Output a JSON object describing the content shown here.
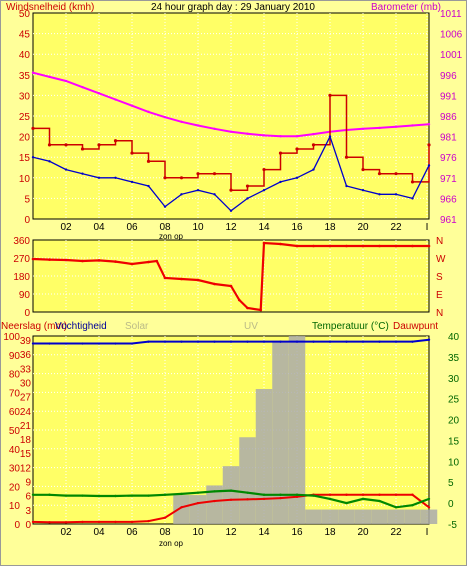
{
  "header": {
    "left_title": "Windsnelheid (kmh)",
    "center_title": "24 hour graph day : 29 January 2010",
    "right_title": "Barometer (mb)"
  },
  "colors": {
    "background": "#ffff99",
    "wind_avg": "#0000cc",
    "wind_gust": "#cc0000",
    "barometer": "#ff00ff",
    "direction": "#ee0000",
    "rain": "#aaaaaa",
    "humidity": "#0000cc",
    "temperature": "#ee0000",
    "dewpoint": "#008800",
    "left_axis_text": "#cc0000",
    "right_axis_text": "#cc00cc",
    "green_axis_text": "#006600"
  },
  "x_axis": {
    "ticks": [
      "02",
      "04",
      "06",
      "08",
      "10",
      "12",
      "14",
      "16",
      "18",
      "20",
      "22",
      "I"
    ],
    "sunrise_label": "zon op"
  },
  "chart_data": [
    {
      "type": "line",
      "name": "wind-and-pressure",
      "y_left": {
        "ticks": [
          "50",
          "45",
          "40",
          "35",
          "30",
          "25",
          "20",
          "15",
          "10",
          "5",
          "0"
        ],
        "range": [
          0,
          50
        ]
      },
      "y_right": {
        "ticks": [
          "1011",
          "1006",
          "1001",
          "996",
          "991",
          "986",
          "981",
          "976",
          "971",
          "966",
          "961"
        ],
        "range": [
          961,
          1011
        ]
      },
      "x": [
        0,
        1,
        2,
        3,
        4,
        5,
        6,
        7,
        8,
        9,
        10,
        11,
        12,
        13,
        14,
        15,
        16,
        17,
        18,
        19,
        20,
        21,
        22,
        23,
        24
      ],
      "series": [
        {
          "key": "barometer",
          "axis": "right",
          "values": [
            996.5,
            995.5,
            994.5,
            993,
            991.5,
            990,
            988.5,
            987,
            985.7,
            984.6,
            983.7,
            982.9,
            982.2,
            981.7,
            981.3,
            981.1,
            981.1,
            981.6,
            982.2,
            982.6,
            982.9,
            983.1,
            983.4,
            983.7,
            984
          ]
        },
        {
          "key": "wind_gust",
          "axis": "left",
          "values": [
            22,
            18,
            18,
            17,
            18,
            19,
            16,
            14,
            10,
            10,
            11,
            11,
            7,
            8,
            12,
            16,
            17,
            18,
            30,
            15,
            12,
            11,
            11,
            9,
            18
          ]
        },
        {
          "key": "wind_avg",
          "axis": "left",
          "values": [
            15,
            14,
            12,
            11,
            10,
            10,
            9,
            8,
            3,
            6,
            7,
            6,
            2,
            5,
            7,
            9,
            10,
            12,
            20,
            8,
            7,
            6,
            6,
            5,
            13
          ]
        }
      ]
    },
    {
      "type": "line",
      "name": "wind-direction",
      "y_left": {
        "ticks": [
          "360",
          "270",
          "180",
          "90",
          "0"
        ],
        "range": [
          0,
          360
        ]
      },
      "y_right": {
        "ticks": [
          "N",
          "W",
          "S",
          "E",
          "N"
        ]
      },
      "x": [
        0,
        1,
        2,
        3,
        4,
        5,
        6,
        7,
        7.5,
        8,
        9,
        10,
        11,
        12,
        12.5,
        13,
        13.8,
        14,
        15,
        16,
        17,
        18,
        19,
        20,
        21,
        22,
        23,
        24
      ],
      "series": [
        {
          "key": "direction",
          "values": [
            265,
            262,
            260,
            255,
            258,
            252,
            240,
            250,
            255,
            170,
            165,
            160,
            140,
            130,
            60,
            20,
            10,
            345,
            340,
            330,
            330,
            330,
            330,
            330,
            330,
            330,
            330,
            330
          ]
        }
      ]
    },
    {
      "type": "line",
      "name": "rain-humidity-temperature",
      "legend": {
        "rain": "Neerslag (mm)",
        "humidity": "Vochtigheid",
        "solar": "Solar",
        "uv": "UV",
        "temperature": "Temperatuur (°C)",
        "dewpoint": "Dauwpunt"
      },
      "y_left": {
        "ticks": [
          "100",
          "90",
          "80",
          "70",
          "60",
          "50",
          "40",
          "30",
          "20",
          "10",
          "0"
        ],
        "range": [
          0,
          100
        ]
      },
      "y_mid": {
        "ticks": [
          "39",
          "36",
          "33",
          "30",
          "27",
          "24",
          "21",
          "18",
          "15",
          "12",
          "9",
          "6",
          "3",
          "0"
        ],
        "range": [
          0,
          39
        ]
      },
      "y_right": {
        "ticks": [
          "40",
          "35",
          "30",
          "25",
          "20",
          "15",
          "10",
          "5",
          "0",
          "-5"
        ],
        "range": [
          -5,
          40
        ]
      },
      "x": [
        0,
        1,
        2,
        3,
        4,
        5,
        6,
        7,
        8,
        9,
        10,
        11,
        12,
        13,
        14,
        15,
        16,
        17,
        18,
        19,
        20,
        21,
        22,
        23,
        24
      ],
      "series": [
        {
          "key": "rain",
          "axis": "mid",
          "values": [
            0,
            0,
            0,
            0,
            0,
            0,
            0,
            0,
            0,
            6,
            6,
            8,
            12,
            18,
            28,
            38,
            39,
            3,
            3,
            3,
            3,
            3,
            3,
            3,
            3
          ]
        },
        {
          "key": "humidity",
          "axis": "left",
          "values": [
            96,
            96,
            96,
            96,
            96,
            96,
            96,
            97,
            97,
            97,
            97,
            97,
            97,
            97,
            97,
            97,
            97,
            97,
            97,
            97,
            97,
            97,
            97,
            97,
            98
          ]
        },
        {
          "key": "temperature",
          "axis": "right",
          "values": [
            -4.5,
            -4.6,
            -4.6,
            -4.5,
            -4.5,
            -4.5,
            -4.5,
            -4.3,
            -3.5,
            -1,
            0,
            0.5,
            0.8,
            0.9,
            1,
            1.2,
            1.5,
            2,
            2,
            2,
            2,
            2,
            2,
            2,
            -1
          ]
        },
        {
          "key": "dewpoint",
          "axis": "right",
          "values": [
            2,
            2,
            1.8,
            1.8,
            1.7,
            1.7,
            1.8,
            1.8,
            2,
            2.2,
            2.5,
            2.8,
            3,
            2.5,
            2,
            2,
            2,
            1.8,
            1,
            0,
            1,
            0.5,
            -1,
            -0.5,
            1
          ]
        }
      ]
    }
  ]
}
